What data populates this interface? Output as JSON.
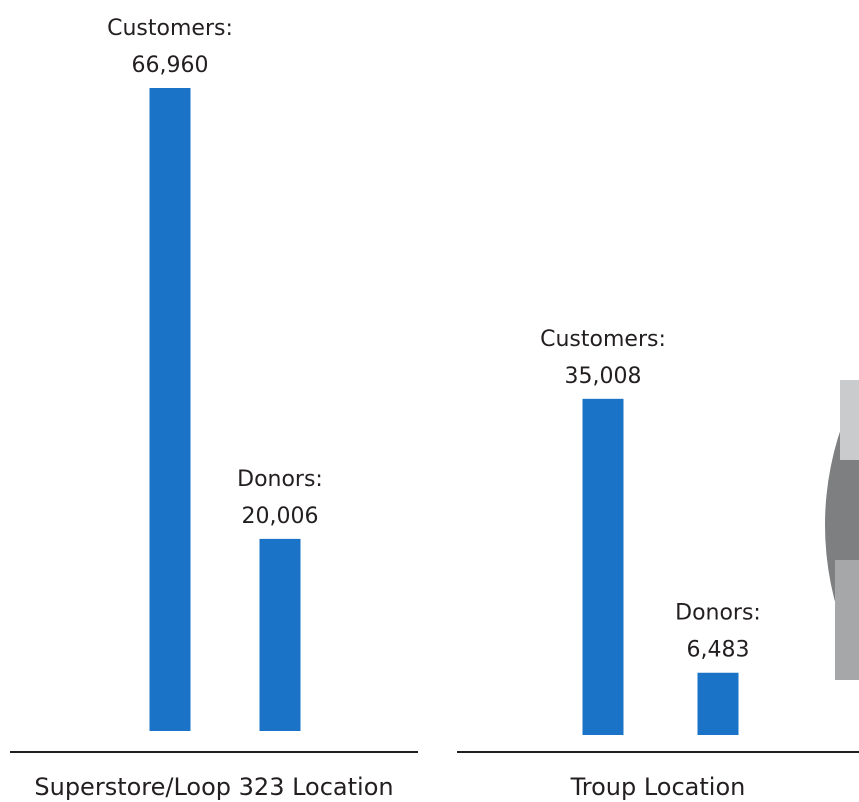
{
  "chart_data": {
    "type": "bar",
    "categories": [
      "Superstore/Loop 323 Location",
      "Troup Location"
    ],
    "series": [
      {
        "name": "Customers:",
        "color": "#1a73c6",
        "values": [
          66960,
          35008
        ],
        "value_labels": [
          "66,960",
          "35,008"
        ]
      },
      {
        "name": "Donors:",
        "color": "#1a73c6",
        "values": [
          20006,
          6483
        ],
        "value_labels": [
          "20,006",
          "6,483"
        ]
      }
    ]
  }
}
